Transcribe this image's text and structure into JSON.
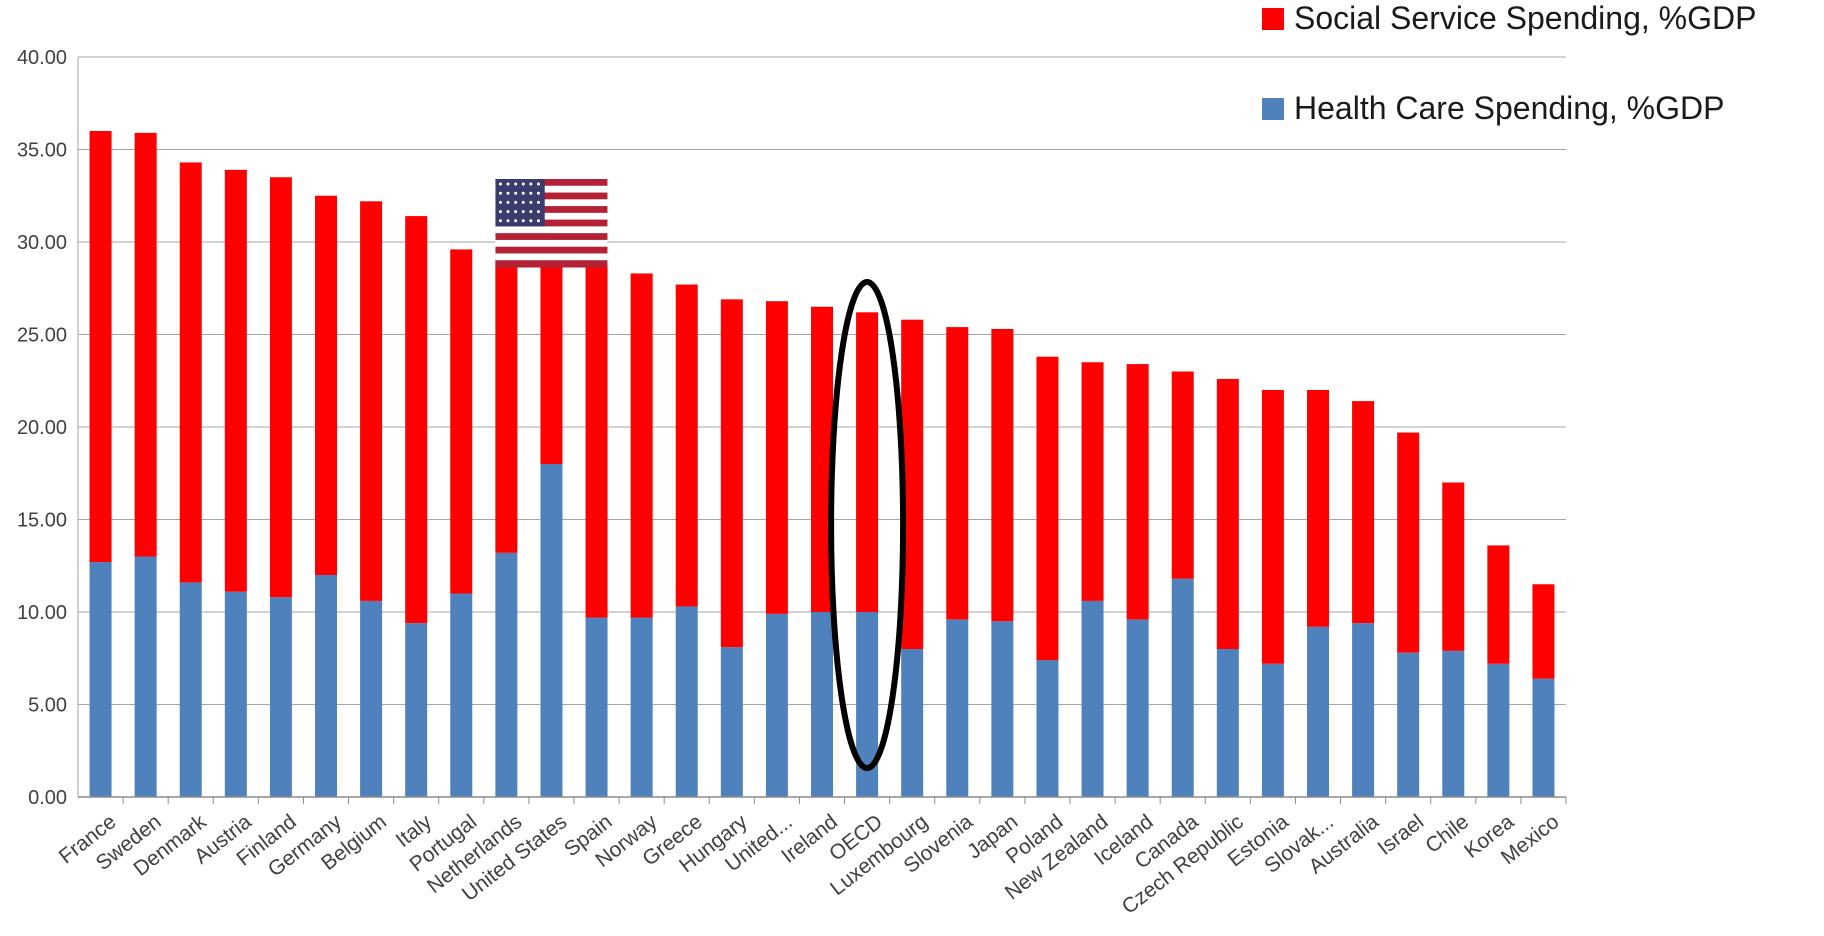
{
  "chart_data": {
    "type": "bar",
    "stacked": true,
    "categories": [
      "France",
      "Sweden",
      "Denmark",
      "Austria",
      "Finland",
      "Germany",
      "Belgium",
      "Italy",
      "Portugal",
      "Netherlands",
      "United States",
      "Spain",
      "Norway",
      "Greece",
      "Hungary",
      "United...",
      "Ireland",
      "OECD",
      "Luxembourg",
      "Slovenia",
      "Japan",
      "Poland",
      "New Zealand",
      "Iceland",
      "Canada",
      "Czech Republic",
      "Estonia",
      "Slovak...",
      "Australia",
      "Israel",
      "Chile",
      "Korea",
      "Mexico"
    ],
    "series": [
      {
        "name": "Health Care Spending, %GDP",
        "color": "#4f81bd",
        "values": [
          12.7,
          13.0,
          11.6,
          11.1,
          10.8,
          12.0,
          10.6,
          9.4,
          11.0,
          13.2,
          18.0,
          9.7,
          9.7,
          10.3,
          8.1,
          9.9,
          10.0,
          10.0,
          8.0,
          9.6,
          9.5,
          7.4,
          10.6,
          9.6,
          11.8,
          8.0,
          7.2,
          9.2,
          9.4,
          7.8,
          7.9,
          7.2,
          6.4
        ]
      },
      {
        "name": "Social Service Spending, %GDP",
        "color": "#ff0000",
        "values": [
          23.3,
          22.9,
          22.7,
          22.8,
          22.7,
          20.5,
          21.6,
          22.0,
          18.6,
          16.0,
          11.0,
          19.1,
          18.6,
          17.4,
          18.8,
          16.9,
          16.5,
          16.2,
          17.8,
          15.8,
          15.8,
          16.4,
          12.9,
          13.8,
          11.2,
          14.6,
          14.8,
          12.8,
          12.0,
          11.9,
          9.1,
          6.4,
          5.1
        ]
      }
    ],
    "ylim": [
      0,
      40
    ],
    "yticks": [
      "0.00",
      "5.00",
      "10.00",
      "15.00",
      "20.00",
      "25.00",
      "30.00",
      "35.00",
      "40.00"
    ],
    "grid": true,
    "legend_position": "top-right",
    "highlight_category": "OECD",
    "flag_category": "United States"
  },
  "legend": {
    "social_label": "Social Service Spending, %GDP",
    "social_color": "#ff0000",
    "health_label": "Health Care Spending, %GDP",
    "health_color": "#4f81bd"
  }
}
